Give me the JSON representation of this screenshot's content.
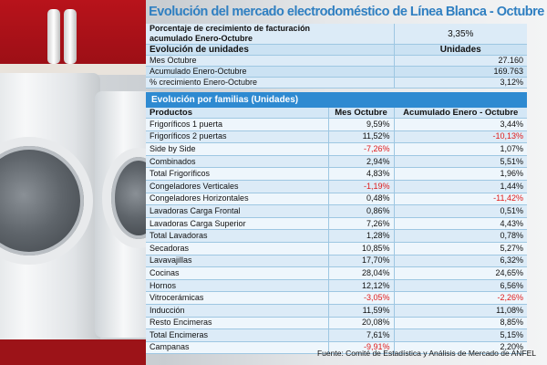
{
  "title": "Evolución del mercado electrodoméstico de Línea Blanca - Octubre",
  "summary": {
    "billing_label_1": "Porcentaje de crecimiento de facturación",
    "billing_label_2": "acumulado Enero-Octubre",
    "billing_value": "3,35%",
    "units_label": "Evolución de unidades",
    "units_header": "Unidades",
    "rows": [
      {
        "label": "Mes Octubre",
        "value": "27.160"
      },
      {
        "label": "Acumulado Enero-Octubre",
        "value": "169.763"
      },
      {
        "label": "% crecimiento Enero-Octubre",
        "value": "3,12%"
      }
    ]
  },
  "families": {
    "section_title": "Evolución por familias (Unidades)",
    "headers": [
      "Productos",
      "Mes Octubre",
      "Acumulado Enero - Octubre"
    ],
    "rows": [
      {
        "product": "Frigoríficos 1 puerta",
        "month": "9,59%",
        "accum": "3,44%"
      },
      {
        "product": "Frigoríficos 2 puertas",
        "month": "11,52%",
        "accum": "-10,13%"
      },
      {
        "product": "Side by Side",
        "month": "-7,26%",
        "accum": "1,07%"
      },
      {
        "product": "Combinados",
        "month": "2,94%",
        "accum": "5,51%"
      },
      {
        "product": "Total Frigoríficos",
        "month": "4,83%",
        "accum": "1,96%"
      },
      {
        "product": "Congeladores Verticales",
        "month": "-1,19%",
        "accum": "1,44%"
      },
      {
        "product": "Congeladores Horizontales",
        "month": "0,48%",
        "accum": "-11,42%"
      },
      {
        "product": "Lavadoras Carga Frontal",
        "month": "0,86%",
        "accum": "0,51%"
      },
      {
        "product": "Lavadoras Carga Superior",
        "month": "7,26%",
        "accum": "4,43%"
      },
      {
        "product": "Total Lavadoras",
        "month": "1,28%",
        "accum": "0,78%"
      },
      {
        "product": "Secadoras",
        "month": "10,85%",
        "accum": "5,27%"
      },
      {
        "product": "Lavavajillas",
        "month": "17,70%",
        "accum": "6,32%"
      },
      {
        "product": "Cocinas",
        "month": "28,04%",
        "accum": "24,65%"
      },
      {
        "product": "Hornos",
        "month": "12,12%",
        "accum": "6,56%"
      },
      {
        "product": "Vitrocerámicas",
        "month": "-3,05%",
        "accum": "-2,26%"
      },
      {
        "product": "Inducción",
        "month": "11,59%",
        "accum": "11,08%"
      },
      {
        "product": "Resto Encimeras",
        "month": "20,08%",
        "accum": "8,85%"
      },
      {
        "product": "Total Encimeras",
        "month": "7,61%",
        "accum": "5,15%"
      },
      {
        "product": "Campanas",
        "month": "-9,91%",
        "accum": "2,20%"
      }
    ]
  },
  "source": "Fuente: Comité de Estadística y Análisis de Mercado de ANFEL",
  "colors": {
    "title": "#2f7fc1",
    "section_bar": "#2e8ad1",
    "negative": "#e01b1b"
  }
}
